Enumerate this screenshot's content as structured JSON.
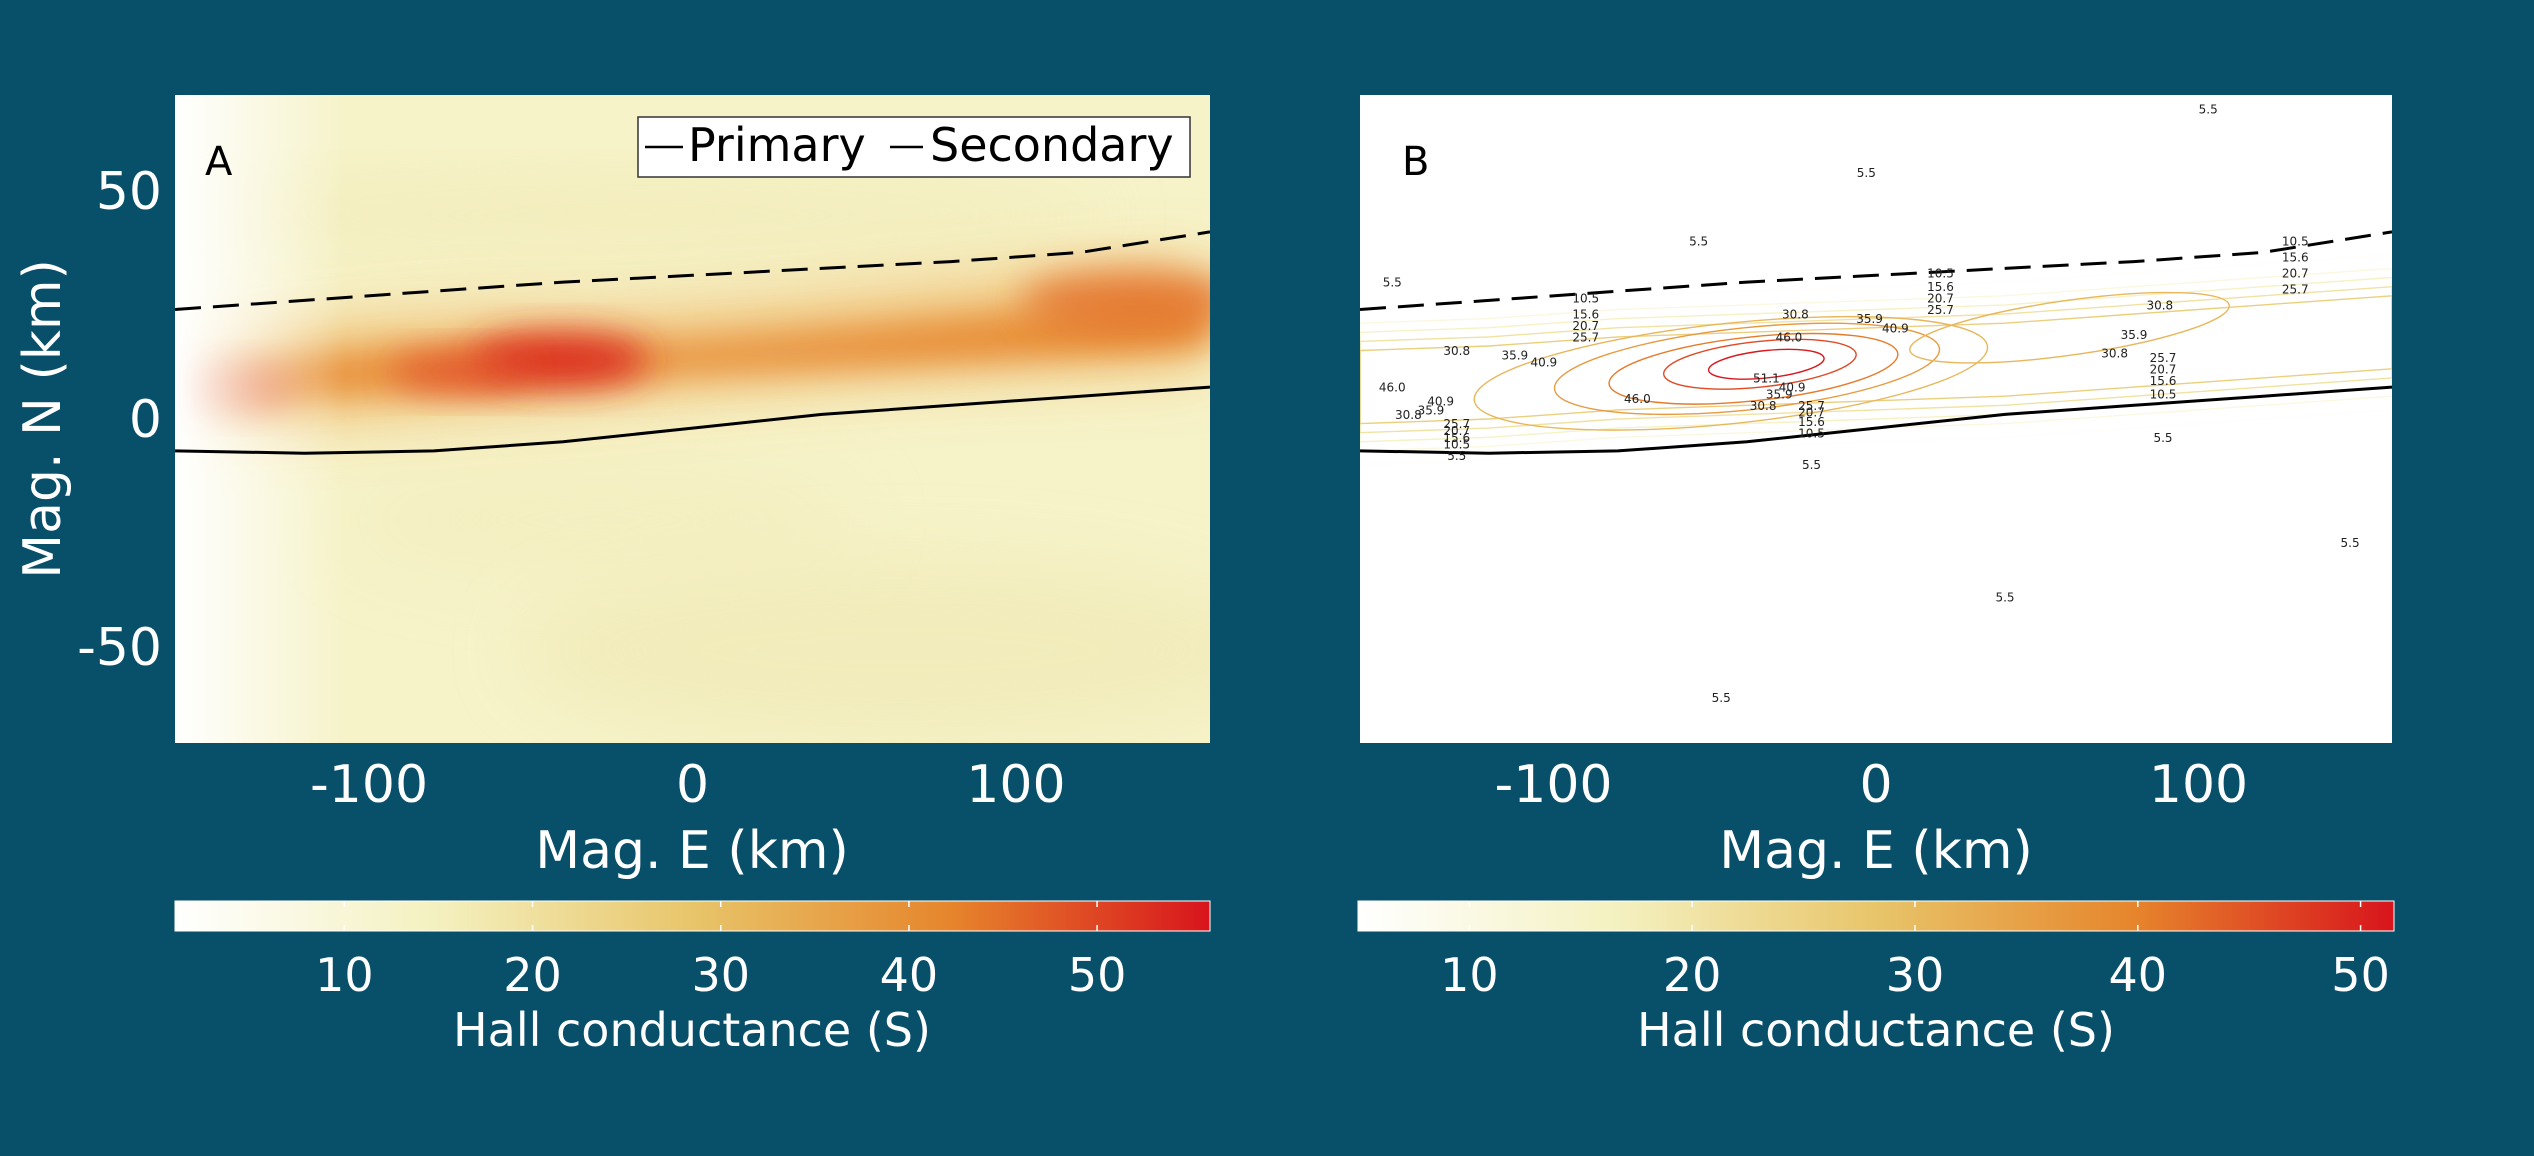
{
  "chart_data": [
    {
      "type": "heatmap",
      "panel_label": "A",
      "title": "",
      "xlabel": "Mag. E (km)",
      "ylabel": "Mag. N (km)",
      "xlim": [
        -160,
        160
      ],
      "ylim": [
        -71,
        71
      ],
      "xticks": [
        -100,
        0,
        100
      ],
      "xtick_labels": [
        "-100",
        "0",
        "100"
      ],
      "yticks": [
        50,
        0,
        -50
      ],
      "ytick_labels": [
        "50",
        "0",
        "-50"
      ],
      "grid": false,
      "legend": {
        "placement": "top-right",
        "entries": [
          {
            "label": "Primary",
            "style": "solid"
          },
          {
            "label": "Secondary",
            "style": "dashed"
          }
        ]
      },
      "colorbar": {
        "label": "Hall conductance (S)",
        "range": [
          1,
          56
        ],
        "ticks": [
          10,
          20,
          30,
          40,
          50
        ],
        "tick_labels": [
          "10",
          "20",
          "30",
          "40",
          "50"
        ],
        "colormap": [
          "#ffffff",
          "#f4f1c0",
          "#e8c56a",
          "#e6852c",
          "#d8141c"
        ]
      },
      "series": [
        {
          "name": "Primary",
          "style": "solid",
          "x": [
            -160,
            -120,
            -80,
            -40,
            0,
            40,
            80,
            120,
            160
          ],
          "y": [
            -7,
            -7.5,
            -7,
            -5,
            -2,
            1,
            3,
            5,
            7
          ]
        },
        {
          "name": "Secondary",
          "style": "dashed",
          "x": [
            -160,
            -120,
            -80,
            -40,
            0,
            40,
            80,
            120,
            160
          ],
          "y": [
            24,
            26,
            28,
            30,
            31.5,
            33,
            34.5,
            36.5,
            41
          ]
        }
      ]
    },
    {
      "type": "contour",
      "panel_label": "B",
      "title": "",
      "xlabel": "Mag. E (km)",
      "ylabel": "",
      "xlim": [
        -160,
        160
      ],
      "ylim": [
        -71,
        71
      ],
      "xticks": [
        -100,
        0,
        100
      ],
      "xtick_labels": [
        "-100",
        "0",
        "100"
      ],
      "grid": false,
      "contour_levels": [
        5.5,
        10.5,
        15.6,
        20.7,
        25.7,
        30.8,
        35.9,
        40.9,
        46.0,
        51.1
      ],
      "colorbar": {
        "label": "Hall conductance (S)",
        "range": [
          5,
          51.5
        ],
        "ticks": [
          10,
          20,
          30,
          40,
          50
        ],
        "tick_labels": [
          "10",
          "20",
          "30",
          "40",
          "50"
        ],
        "colormap": [
          "#ffffff",
          "#f4f1c0",
          "#e8c56a",
          "#e6852c",
          "#d8141c"
        ]
      },
      "contour_labels": [
        {
          "text": "5.5",
          "x": -150,
          "y": 29
        },
        {
          "text": "5.5",
          "x": -3,
          "y": 53
        },
        {
          "text": "5.5",
          "x": -55,
          "y": 38
        },
        {
          "text": "5.5",
          "x": 103,
          "y": 67
        },
        {
          "text": "5.5",
          "x": -130,
          "y": -9
        },
        {
          "text": "5.5",
          "x": -20,
          "y": -11
        },
        {
          "text": "5.5",
          "x": 89,
          "y": -5
        },
        {
          "text": "5.5",
          "x": 40,
          "y": -40
        },
        {
          "text": "5.5",
          "x": 147,
          "y": -28
        },
        {
          "text": "5.5",
          "x": -48,
          "y": -62
        },
        {
          "text": "10.5",
          "x": -90,
          "y": 25.5
        },
        {
          "text": "15.6",
          "x": -90,
          "y": 22
        },
        {
          "text": "20.7",
          "x": -90,
          "y": 19.5
        },
        {
          "text": "25.7",
          "x": -90,
          "y": 17
        },
        {
          "text": "10.5",
          "x": 20,
          "y": 31
        },
        {
          "text": "15.6",
          "x": 20,
          "y": 28
        },
        {
          "text": "20.7",
          "x": 20,
          "y": 25.5
        },
        {
          "text": "25.7",
          "x": 20,
          "y": 23
        },
        {
          "text": "10.5",
          "x": 130,
          "y": 38
        },
        {
          "text": "15.6",
          "x": 130,
          "y": 34.5
        },
        {
          "text": "20.7",
          "x": 130,
          "y": 31
        },
        {
          "text": "25.7",
          "x": 130,
          "y": 27.5
        },
        {
          "text": "30.8",
          "x": -130,
          "y": 14
        },
        {
          "text": "35.9",
          "x": -112,
          "y": 13
        },
        {
          "text": "40.9",
          "x": -103,
          "y": 11.5
        },
        {
          "text": "46.0",
          "x": -150,
          "y": 6
        },
        {
          "text": "40.9",
          "x": -135,
          "y": 3
        },
        {
          "text": "35.9",
          "x": -138,
          "y": 1
        },
        {
          "text": "30.8",
          "x": -145,
          "y": 0
        },
        {
          "text": "25.7",
          "x": -130,
          "y": -2
        },
        {
          "text": "20.7",
          "x": -130,
          "y": -3.5
        },
        {
          "text": "15.6",
          "x": -130,
          "y": -5
        },
        {
          "text": "10.5",
          "x": -130,
          "y": -6.5
        },
        {
          "text": "30.8",
          "x": -25,
          "y": 22
        },
        {
          "text": "46.0",
          "x": -27,
          "y": 17
        },
        {
          "text": "35.9",
          "x": -2,
          "y": 21
        },
        {
          "text": "40.9",
          "x": 6,
          "y": 19
        },
        {
          "text": "51.1",
          "x": -34,
          "y": 8
        },
        {
          "text": "46.0",
          "x": -74,
          "y": 3.5
        },
        {
          "text": "40.9",
          "x": -26,
          "y": 6
        },
        {
          "text": "35.9",
          "x": -30,
          "y": 4.5
        },
        {
          "text": "30.8",
          "x": -35,
          "y": 2
        },
        {
          "text": "25.7",
          "x": -20,
          "y": 2
        },
        {
          "text": "20.7",
          "x": -20,
          "y": 0.5
        },
        {
          "text": "15.6",
          "x": -20,
          "y": -1.5
        },
        {
          "text": "10.5",
          "x": -20,
          "y": -4
        },
        {
          "text": "30.8",
          "x": 88,
          "y": 24
        },
        {
          "text": "35.9",
          "x": 80,
          "y": 17.5
        },
        {
          "text": "30.8",
          "x": 74,
          "y": 13.5
        },
        {
          "text": "25.7",
          "x": 89,
          "y": 12.5
        },
        {
          "text": "20.7",
          "x": 89,
          "y": 10
        },
        {
          "text": "15.6",
          "x": 89,
          "y": 7.5
        },
        {
          "text": "10.5",
          "x": 89,
          "y": 4.5
        }
      ],
      "series": [
        {
          "name": "Primary",
          "style": "solid",
          "x": [
            -160,
            -120,
            -80,
            -40,
            0,
            40,
            80,
            120,
            160
          ],
          "y": [
            -7,
            -7.5,
            -7,
            -5,
            -2,
            1,
            3,
            5,
            7
          ]
        },
        {
          "name": "Secondary",
          "style": "dashed",
          "x": [
            -160,
            -120,
            -80,
            -40,
            0,
            40,
            80,
            120,
            160
          ],
          "y": [
            24,
            26,
            28,
            30,
            31.5,
            33,
            34.5,
            36.5,
            41
          ]
        }
      ]
    }
  ]
}
